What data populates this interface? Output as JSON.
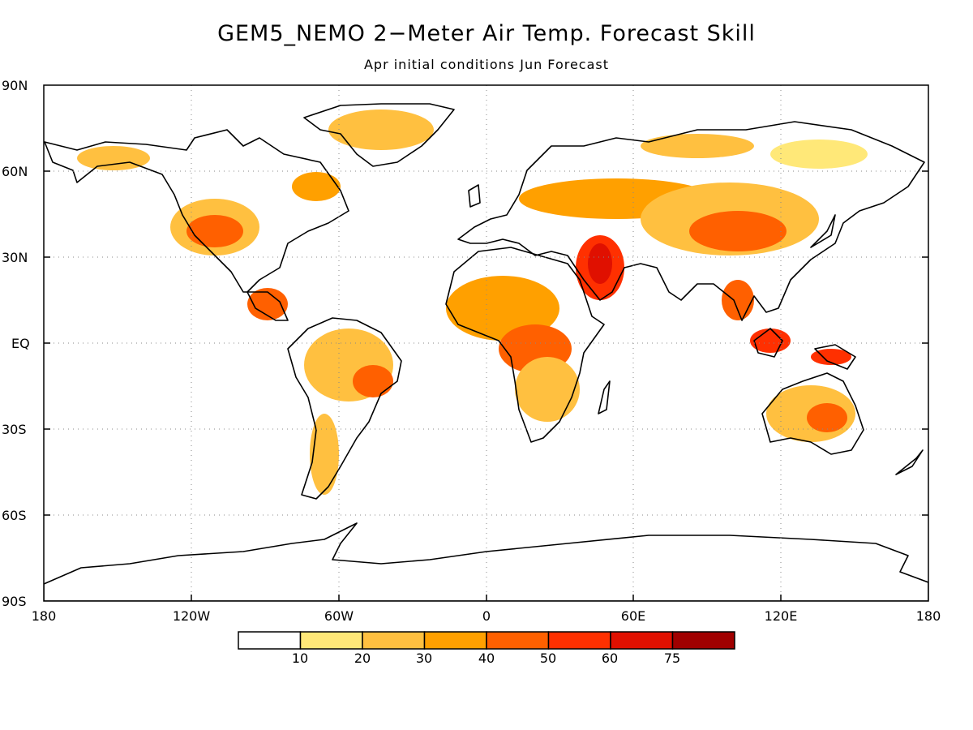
{
  "title": "GEM5_NEMO 2−Meter Air Temp. Forecast Skill",
  "subtitle": "Apr initial conditions  Jun Forecast",
  "axes": {
    "y_ticks": [
      "90N",
      "60N",
      "30N",
      "EQ",
      "30S",
      "60S",
      "90S"
    ],
    "x_ticks": [
      "180",
      "120W",
      "60W",
      "0",
      "60E",
      "120E",
      "180"
    ]
  },
  "colorbar": {
    "labels": [
      "10",
      "20",
      "30",
      "40",
      "50",
      "60",
      "75"
    ],
    "colors": [
      "#ffffff",
      "#ffe878",
      "#ffc040",
      "#ffa000",
      "#ff6000",
      "#ff3000",
      "#e01000",
      "#a00000"
    ]
  },
  "map": {
    "land_fill": "#ffffff",
    "coast_color": "#000000",
    "skill_colors": {
      "low": "#ffe878",
      "mid": "#ffa000",
      "high": "#ff3000",
      "very_high": "#e01000"
    },
    "grid": "dotted"
  }
}
